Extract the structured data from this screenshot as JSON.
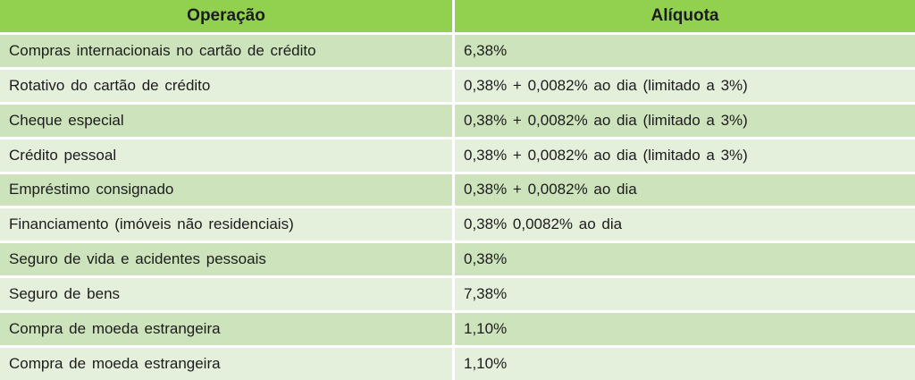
{
  "colors": {
    "header_green": "#92d050",
    "row_medium_green": "#cde3bc",
    "row_light_green": "#e4f0dc",
    "gutter_white": "#ffffff",
    "text": "#1c1c1c"
  },
  "chart_data": {
    "type": "table",
    "title": "",
    "columns": [
      "Operação",
      "Alíquota"
    ],
    "rows": [
      [
        "Compras internacionais no cartão de crédito",
        "6,38%"
      ],
      [
        "Rotativo do cartão de crédito",
        "0,38% + 0,0082% ao dia (limitado a 3%)"
      ],
      [
        "Cheque especial",
        "0,38% + 0,0082% ao dia (limitado a 3%)"
      ],
      [
        "Crédito pessoal",
        "0,38% + 0,0082% ao dia (limitado a 3%)"
      ],
      [
        "Empréstimo consignado",
        "0,38% + 0,0082% ao dia"
      ],
      [
        "Financiamento (imóveis não residenciais)",
        "0,38% 0,0082% ao dia"
      ],
      [
        "Seguro de vida e acidentes pessoais",
        "0,38%"
      ],
      [
        "Seguro de bens",
        "7,38%"
      ],
      [
        "Compra de moeda estrangeira",
        "1,10%"
      ],
      [
        "Compra de moeda estrangeira",
        "1,10%"
      ]
    ],
    "layout": {
      "header_alignment": "center",
      "cell_alignment": "left",
      "striping": "alternating starting with medium green"
    }
  }
}
